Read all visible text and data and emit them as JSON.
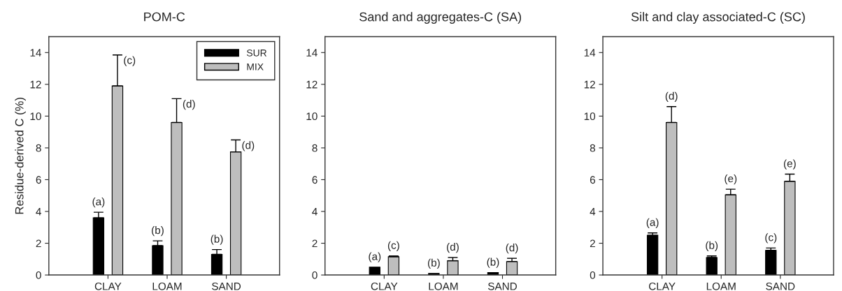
{
  "chart_data": [
    {
      "type": "bar",
      "title": "POM-C",
      "ylabel": "Residue-derived C (%)",
      "categories": [
        "CLAY",
        "LOAM",
        "SAND"
      ],
      "ylim": [
        0,
        15
      ],
      "yticks": [
        0,
        2,
        4,
        6,
        8,
        10,
        12,
        14
      ],
      "legend": "top right",
      "grid": false,
      "series": [
        {
          "name": "SUR",
          "color": "#000000",
          "values": [
            3.6,
            1.85,
            1.3
          ],
          "errors": [
            [
              3.6,
              3.95
            ],
            [
              1.85,
              2.15
            ],
            [
              1.3,
              1.6
            ]
          ],
          "value_labels": [
            "(a)",
            "(b)",
            "(b)"
          ]
        },
        {
          "name": "MIX",
          "color": "#bebebe",
          "values": [
            11.9,
            9.6,
            7.75
          ],
          "errors": [
            [
              11.9,
              13.85
            ],
            [
              9.6,
              11.1
            ],
            [
              7.75,
              8.5
            ]
          ],
          "value_labels": [
            "(c)",
            "(d)",
            "(d)"
          ]
        }
      ]
    },
    {
      "type": "bar",
      "title": "Sand and aggregates-C (SA)",
      "categories": [
        "CLAY",
        "LOAM",
        "SAND"
      ],
      "ylim": [
        0,
        15
      ],
      "yticks": [
        0,
        2,
        4,
        6,
        8,
        10,
        12,
        14
      ],
      "grid": false,
      "series": [
        {
          "color": "#000000",
          "values": [
            0.5,
            0.1,
            0.15
          ],
          "errors": [
            null,
            null,
            null
          ],
          "value_labels": [
            "(a)",
            "(b)",
            "(b)"
          ]
        },
        {
          "color": "#bebebe",
          "values": [
            1.15,
            0.9,
            0.85
          ],
          "errors": [
            [
              1.15,
              1.2
            ],
            [
              0.9,
              1.1
            ],
            [
              0.85,
              1.05
            ]
          ],
          "value_labels": [
            "(c)",
            "(d)",
            "(d)"
          ]
        }
      ]
    },
    {
      "type": "bar",
      "title": "Silt and clay associated-C (SC)",
      "categories": [
        "CLAY",
        "LOAM",
        "SAND"
      ],
      "ylim": [
        0,
        15
      ],
      "yticks": [
        0,
        2,
        4,
        6,
        8,
        10,
        12,
        14
      ],
      "grid": false,
      "series": [
        {
          "color": "#000000",
          "values": [
            2.5,
            1.1,
            1.55
          ],
          "errors": [
            [
              2.5,
              2.65
            ],
            [
              1.1,
              1.2
            ],
            [
              1.55,
              1.7
            ]
          ],
          "value_labels": [
            "(a)",
            "(b)",
            "(c)"
          ]
        },
        {
          "color": "#bebebe",
          "values": [
            9.6,
            5.05,
            5.9
          ],
          "errors": [
            [
              9.6,
              10.6
            ],
            [
              5.05,
              5.4
            ],
            [
              5.9,
              6.35
            ]
          ],
          "value_labels": [
            "(d)",
            "(e)",
            "(e)"
          ]
        }
      ]
    }
  ]
}
